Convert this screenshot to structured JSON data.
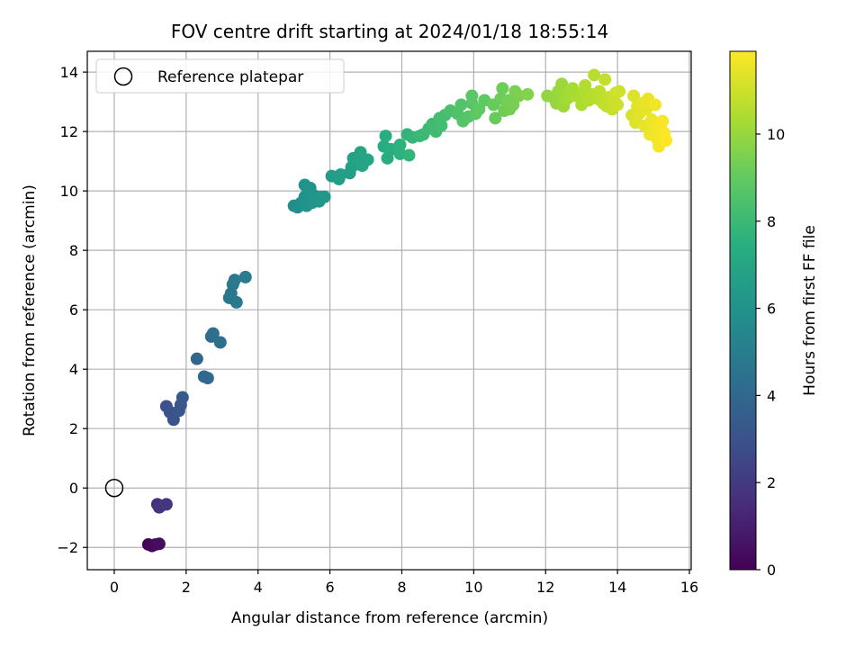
{
  "chart_data": {
    "type": "scatter",
    "title": "FOV centre drift starting at 2024/01/18 18:55:14",
    "xlabel": "Angular distance from reference (arcmin)",
    "ylabel": "Rotation from reference (arcmin)",
    "xlim": [
      -0.75,
      16.05
    ],
    "ylim": [
      -2.75,
      14.7
    ],
    "xticks": [
      0,
      2,
      4,
      6,
      8,
      10,
      12,
      14,
      16
    ],
    "yticks": [
      -2,
      0,
      2,
      4,
      6,
      8,
      10,
      12,
      14
    ],
    "grid": true,
    "legend": {
      "position": "top-left",
      "label": "Reference platepar"
    },
    "reference_point": {
      "x": 0,
      "y": 0
    },
    "colorbar": {
      "label": "Hours from first FF file",
      "colormap": "viridis",
      "range": [
        0,
        11.9
      ],
      "ticks": [
        0,
        2,
        4,
        6,
        8,
        10
      ]
    },
    "series": [
      {
        "points": [
          {
            "x": 0.95,
            "y": -1.9,
            "t": 0.1
          },
          {
            "x": 1.05,
            "y": -1.95,
            "t": 0.2
          },
          {
            "x": 1.15,
            "y": -1.9,
            "t": 0.3
          },
          {
            "x": 1.25,
            "y": -1.88,
            "t": 0.4
          },
          {
            "x": 1.2,
            "y": -0.55,
            "t": 1.6
          },
          {
            "x": 1.25,
            "y": -0.65,
            "t": 1.7
          },
          {
            "x": 1.3,
            "y": -0.6,
            "t": 1.8
          },
          {
            "x": 1.45,
            "y": -0.55,
            "t": 1.9
          },
          {
            "x": 1.45,
            "y": 2.75,
            "t": 2.9
          },
          {
            "x": 1.55,
            "y": 2.55,
            "t": 3.0
          },
          {
            "x": 1.65,
            "y": 2.3,
            "t": 3.05
          },
          {
            "x": 1.8,
            "y": 2.6,
            "t": 3.1
          },
          {
            "x": 1.85,
            "y": 2.8,
            "t": 3.2
          },
          {
            "x": 1.9,
            "y": 3.05,
            "t": 3.3
          },
          {
            "x": 2.3,
            "y": 4.35,
            "t": 3.9
          },
          {
            "x": 2.5,
            "y": 3.75,
            "t": 4.0
          },
          {
            "x": 2.6,
            "y": 3.7,
            "t": 4.05
          },
          {
            "x": 2.7,
            "y": 5.1,
            "t": 4.2
          },
          {
            "x": 2.75,
            "y": 5.2,
            "t": 4.3
          },
          {
            "x": 2.95,
            "y": 4.9,
            "t": 4.35
          },
          {
            "x": 3.2,
            "y": 6.4,
            "t": 4.6
          },
          {
            "x": 3.25,
            "y": 6.55,
            "t": 4.7
          },
          {
            "x": 3.3,
            "y": 6.85,
            "t": 4.75
          },
          {
            "x": 3.35,
            "y": 7.0,
            "t": 4.8
          },
          {
            "x": 3.4,
            "y": 6.25,
            "t": 4.85
          },
          {
            "x": 3.65,
            "y": 7.1,
            "t": 4.9
          },
          {
            "x": 5.0,
            "y": 9.5,
            "t": 5.8
          },
          {
            "x": 5.1,
            "y": 9.45,
            "t": 5.85
          },
          {
            "x": 5.2,
            "y": 9.6,
            "t": 5.9
          },
          {
            "x": 5.25,
            "y": 9.55,
            "t": 5.95
          },
          {
            "x": 5.3,
            "y": 9.8,
            "t": 6.0
          },
          {
            "x": 5.3,
            "y": 10.2,
            "t": 6.0
          },
          {
            "x": 5.35,
            "y": 9.5,
            "t": 6.05
          },
          {
            "x": 5.4,
            "y": 10.0,
            "t": 6.05
          },
          {
            "x": 5.45,
            "y": 10.1,
            "t": 6.1
          },
          {
            "x": 5.5,
            "y": 9.6,
            "t": 6.1
          },
          {
            "x": 5.55,
            "y": 9.85,
            "t": 6.15
          },
          {
            "x": 5.6,
            "y": 9.7,
            "t": 6.2
          },
          {
            "x": 5.7,
            "y": 9.65,
            "t": 6.2
          },
          {
            "x": 5.75,
            "y": 9.8,
            "t": 6.25
          },
          {
            "x": 5.85,
            "y": 9.8,
            "t": 6.3
          },
          {
            "x": 6.05,
            "y": 10.5,
            "t": 6.5
          },
          {
            "x": 6.25,
            "y": 10.4,
            "t": 6.55
          },
          {
            "x": 6.3,
            "y": 10.55,
            "t": 6.6
          },
          {
            "x": 6.55,
            "y": 10.6,
            "t": 6.65
          },
          {
            "x": 6.6,
            "y": 10.8,
            "t": 6.7
          },
          {
            "x": 6.65,
            "y": 11.1,
            "t": 6.75
          },
          {
            "x": 6.75,
            "y": 10.9,
            "t": 6.8
          },
          {
            "x": 6.8,
            "y": 11.0,
            "t": 6.85
          },
          {
            "x": 6.85,
            "y": 11.3,
            "t": 6.9
          },
          {
            "x": 6.9,
            "y": 10.85,
            "t": 6.95
          },
          {
            "x": 7.05,
            "y": 11.05,
            "t": 7.0
          },
          {
            "x": 7.5,
            "y": 11.5,
            "t": 7.3
          },
          {
            "x": 7.55,
            "y": 11.85,
            "t": 7.35
          },
          {
            "x": 7.6,
            "y": 11.1,
            "t": 7.4
          },
          {
            "x": 7.7,
            "y": 11.4,
            "t": 7.45
          },
          {
            "x": 7.95,
            "y": 11.25,
            "t": 7.55
          },
          {
            "x": 7.95,
            "y": 11.55,
            "t": 7.6
          },
          {
            "x": 8.15,
            "y": 11.9,
            "t": 7.7
          },
          {
            "x": 8.2,
            "y": 11.2,
            "t": 7.75
          },
          {
            "x": 8.3,
            "y": 11.8,
            "t": 7.8
          },
          {
            "x": 8.5,
            "y": 11.85,
            "t": 7.95
          },
          {
            "x": 8.6,
            "y": 11.9,
            "t": 8.0
          },
          {
            "x": 8.75,
            "y": 12.1,
            "t": 8.05
          },
          {
            "x": 8.85,
            "y": 12.25,
            "t": 8.1
          },
          {
            "x": 8.95,
            "y": 12.0,
            "t": 8.15
          },
          {
            "x": 9.05,
            "y": 12.45,
            "t": 8.2
          },
          {
            "x": 9.1,
            "y": 12.2,
            "t": 8.25
          },
          {
            "x": 9.2,
            "y": 12.55,
            "t": 8.3
          },
          {
            "x": 9.35,
            "y": 12.7,
            "t": 8.4
          },
          {
            "x": 9.55,
            "y": 12.6,
            "t": 8.55
          },
          {
            "x": 9.65,
            "y": 12.9,
            "t": 8.6
          },
          {
            "x": 9.7,
            "y": 12.35,
            "t": 8.65
          },
          {
            "x": 9.85,
            "y": 12.5,
            "t": 8.7
          },
          {
            "x": 9.95,
            "y": 12.95,
            "t": 8.75
          },
          {
            "x": 9.95,
            "y": 13.2,
            "t": 8.8
          },
          {
            "x": 10.05,
            "y": 12.6,
            "t": 8.85
          },
          {
            "x": 10.15,
            "y": 12.75,
            "t": 8.9
          },
          {
            "x": 10.3,
            "y": 13.05,
            "t": 8.95
          },
          {
            "x": 10.55,
            "y": 12.9,
            "t": 9.05
          },
          {
            "x": 10.6,
            "y": 12.45,
            "t": 9.1
          },
          {
            "x": 10.75,
            "y": 13.1,
            "t": 9.15
          },
          {
            "x": 10.8,
            "y": 13.45,
            "t": 9.2
          },
          {
            "x": 10.85,
            "y": 12.7,
            "t": 9.25
          },
          {
            "x": 10.95,
            "y": 13.05,
            "t": 9.3
          },
          {
            "x": 11.0,
            "y": 12.75,
            "t": 9.35
          },
          {
            "x": 11.1,
            "y": 12.9,
            "t": 9.4
          },
          {
            "x": 11.15,
            "y": 13.35,
            "t": 9.45
          },
          {
            "x": 11.25,
            "y": 13.2,
            "t": 9.5
          },
          {
            "x": 11.5,
            "y": 13.25,
            "t": 9.6
          },
          {
            "x": 12.05,
            "y": 13.2,
            "t": 9.9
          },
          {
            "x": 12.2,
            "y": 13.15,
            "t": 9.95
          },
          {
            "x": 12.3,
            "y": 12.95,
            "t": 10.0
          },
          {
            "x": 12.35,
            "y": 13.35,
            "t": 10.05
          },
          {
            "x": 12.45,
            "y": 13.6,
            "t": 10.1
          },
          {
            "x": 12.5,
            "y": 12.85,
            "t": 10.15
          },
          {
            "x": 12.55,
            "y": 13.05,
            "t": 10.15
          },
          {
            "x": 12.6,
            "y": 13.3,
            "t": 10.2
          },
          {
            "x": 12.65,
            "y": 13.15,
            "t": 10.25
          },
          {
            "x": 12.75,
            "y": 13.45,
            "t": 10.3
          },
          {
            "x": 12.85,
            "y": 13.2,
            "t": 10.35
          },
          {
            "x": 13.0,
            "y": 12.9,
            "t": 10.4
          },
          {
            "x": 13.05,
            "y": 13.3,
            "t": 10.45
          },
          {
            "x": 13.1,
            "y": 13.55,
            "t": 10.5
          },
          {
            "x": 13.2,
            "y": 13.05,
            "t": 10.55
          },
          {
            "x": 13.3,
            "y": 13.25,
            "t": 10.6
          },
          {
            "x": 13.35,
            "y": 13.9,
            "t": 10.6
          },
          {
            "x": 13.45,
            "y": 13.1,
            "t": 10.65
          },
          {
            "x": 13.5,
            "y": 13.35,
            "t": 10.7
          },
          {
            "x": 13.6,
            "y": 12.95,
            "t": 10.75
          },
          {
            "x": 13.65,
            "y": 13.75,
            "t": 10.8
          },
          {
            "x": 13.7,
            "y": 12.85,
            "t": 10.8
          },
          {
            "x": 13.75,
            "y": 13.15,
            "t": 10.85
          },
          {
            "x": 13.85,
            "y": 12.75,
            "t": 10.9
          },
          {
            "x": 13.9,
            "y": 13.05,
            "t": 10.95
          },
          {
            "x": 13.95,
            "y": 13.3,
            "t": 11.0
          },
          {
            "x": 14.0,
            "y": 12.9,
            "t": 11.0
          },
          {
            "x": 14.05,
            "y": 13.35,
            "t": 11.05
          },
          {
            "x": 14.4,
            "y": 12.55,
            "t": 11.2
          },
          {
            "x": 14.45,
            "y": 13.2,
            "t": 11.25
          },
          {
            "x": 14.5,
            "y": 12.3,
            "t": 11.3
          },
          {
            "x": 14.55,
            "y": 12.85,
            "t": 11.35
          },
          {
            "x": 14.6,
            "y": 12.6,
            "t": 11.4
          },
          {
            "x": 14.7,
            "y": 12.95,
            "t": 11.45
          },
          {
            "x": 14.75,
            "y": 12.2,
            "t": 11.5
          },
          {
            "x": 14.8,
            "y": 12.75,
            "t": 11.5
          },
          {
            "x": 14.85,
            "y": 13.1,
            "t": 11.55
          },
          {
            "x": 14.9,
            "y": 11.9,
            "t": 11.6
          },
          {
            "x": 14.95,
            "y": 12.4,
            "t": 11.6
          },
          {
            "x": 15.0,
            "y": 12.05,
            "t": 11.65
          },
          {
            "x": 15.05,
            "y": 12.9,
            "t": 11.7
          },
          {
            "x": 15.1,
            "y": 11.75,
            "t": 11.7
          },
          {
            "x": 15.15,
            "y": 11.5,
            "t": 11.75
          },
          {
            "x": 15.2,
            "y": 12.2,
            "t": 11.8
          },
          {
            "x": 15.25,
            "y": 12.35,
            "t": 11.8
          },
          {
            "x": 15.3,
            "y": 11.95,
            "t": 11.85
          },
          {
            "x": 15.35,
            "y": 11.7,
            "t": 11.9
          }
        ]
      }
    ]
  }
}
